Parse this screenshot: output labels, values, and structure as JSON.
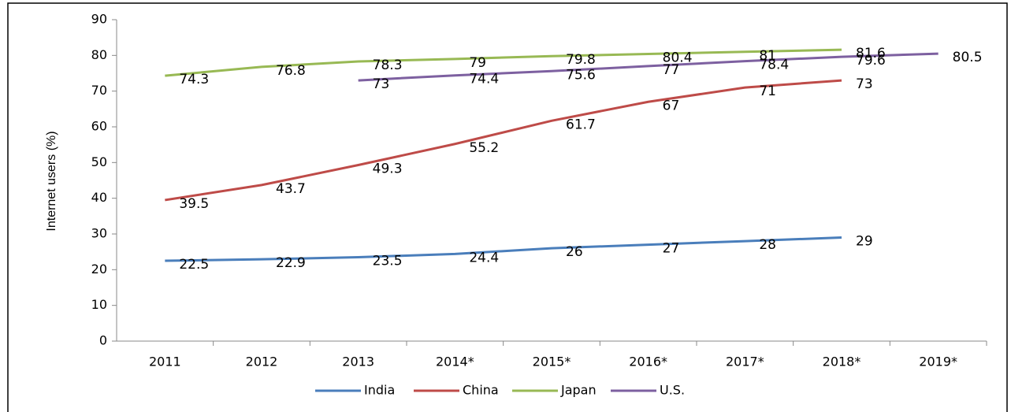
{
  "chart_data": {
    "type": "line",
    "y_label": "Internet users (%)",
    "categories": [
      "2011",
      "2012",
      "2013",
      "2014*",
      "2015*",
      "2016*",
      "2017*",
      "2018*",
      "2019*"
    ],
    "series": [
      {
        "name": "India",
        "color": "#4a7ebb",
        "values": [
          22.5,
          22.9,
          23.5,
          24.4,
          26,
          27,
          28,
          29,
          null
        ]
      },
      {
        "name": "China",
        "color": "#be4b48",
        "values": [
          39.5,
          43.7,
          49.3,
          55.2,
          61.7,
          67,
          71,
          73,
          null
        ]
      },
      {
        "name": "Japan",
        "color": "#98b954",
        "values": [
          74.3,
          76.8,
          78.3,
          79,
          79.8,
          80.4,
          81,
          81.6,
          null
        ]
      },
      {
        "name": "U.S.",
        "color": "#7d60a0",
        "values": [
          null,
          null,
          73,
          74.4,
          75.6,
          77,
          78.4,
          79.6,
          80.5
        ]
      }
    ],
    "ylim": [
      0,
      90
    ],
    "yticks": [
      0,
      10,
      20,
      30,
      40,
      50,
      60,
      70,
      80,
      90
    ],
    "legend": "bottom"
  }
}
